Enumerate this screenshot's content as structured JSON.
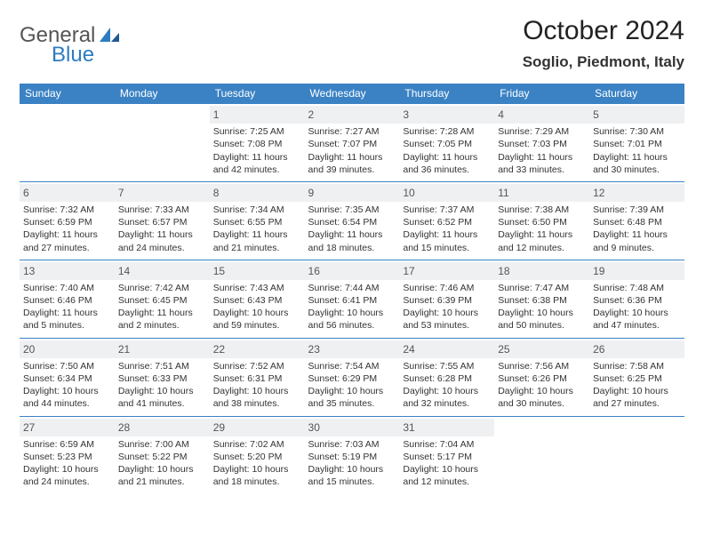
{
  "logo": {
    "textTop": "General",
    "textBottom": "Blue",
    "accent": "#2d7cc0"
  },
  "title": "October 2024",
  "location": "Soglio, Piedmont, Italy",
  "dayHeaders": [
    "Sunday",
    "Monday",
    "Tuesday",
    "Wednesday",
    "Thursday",
    "Friday",
    "Saturday"
  ],
  "theme": {
    "headerBg": "#3b82c4",
    "headerText": "#ffffff",
    "dayBg": "#eef0f2",
    "borderColor": "#3b82c4",
    "textColor": "#333333",
    "fontSizeBody": 10.5,
    "fontSizeDay": 12,
    "fontSizeTitle": 30,
    "fontSizeLocation": 17
  },
  "weeks": [
    [
      null,
      null,
      {
        "n": "1",
        "sunrise": "7:25 AM",
        "sunset": "7:08 PM",
        "daylight": "11 hours and 42 minutes."
      },
      {
        "n": "2",
        "sunrise": "7:27 AM",
        "sunset": "7:07 PM",
        "daylight": "11 hours and 39 minutes."
      },
      {
        "n": "3",
        "sunrise": "7:28 AM",
        "sunset": "7:05 PM",
        "daylight": "11 hours and 36 minutes."
      },
      {
        "n": "4",
        "sunrise": "7:29 AM",
        "sunset": "7:03 PM",
        "daylight": "11 hours and 33 minutes."
      },
      {
        "n": "5",
        "sunrise": "7:30 AM",
        "sunset": "7:01 PM",
        "daylight": "11 hours and 30 minutes."
      }
    ],
    [
      {
        "n": "6",
        "sunrise": "7:32 AM",
        "sunset": "6:59 PM",
        "daylight": "11 hours and 27 minutes."
      },
      {
        "n": "7",
        "sunrise": "7:33 AM",
        "sunset": "6:57 PM",
        "daylight": "11 hours and 24 minutes."
      },
      {
        "n": "8",
        "sunrise": "7:34 AM",
        "sunset": "6:55 PM",
        "daylight": "11 hours and 21 minutes."
      },
      {
        "n": "9",
        "sunrise": "7:35 AM",
        "sunset": "6:54 PM",
        "daylight": "11 hours and 18 minutes."
      },
      {
        "n": "10",
        "sunrise": "7:37 AM",
        "sunset": "6:52 PM",
        "daylight": "11 hours and 15 minutes."
      },
      {
        "n": "11",
        "sunrise": "7:38 AM",
        "sunset": "6:50 PM",
        "daylight": "11 hours and 12 minutes."
      },
      {
        "n": "12",
        "sunrise": "7:39 AM",
        "sunset": "6:48 PM",
        "daylight": "11 hours and 9 minutes."
      }
    ],
    [
      {
        "n": "13",
        "sunrise": "7:40 AM",
        "sunset": "6:46 PM",
        "daylight": "11 hours and 5 minutes."
      },
      {
        "n": "14",
        "sunrise": "7:42 AM",
        "sunset": "6:45 PM",
        "daylight": "11 hours and 2 minutes."
      },
      {
        "n": "15",
        "sunrise": "7:43 AM",
        "sunset": "6:43 PM",
        "daylight": "10 hours and 59 minutes."
      },
      {
        "n": "16",
        "sunrise": "7:44 AM",
        "sunset": "6:41 PM",
        "daylight": "10 hours and 56 minutes."
      },
      {
        "n": "17",
        "sunrise": "7:46 AM",
        "sunset": "6:39 PM",
        "daylight": "10 hours and 53 minutes."
      },
      {
        "n": "18",
        "sunrise": "7:47 AM",
        "sunset": "6:38 PM",
        "daylight": "10 hours and 50 minutes."
      },
      {
        "n": "19",
        "sunrise": "7:48 AM",
        "sunset": "6:36 PM",
        "daylight": "10 hours and 47 minutes."
      }
    ],
    [
      {
        "n": "20",
        "sunrise": "7:50 AM",
        "sunset": "6:34 PM",
        "daylight": "10 hours and 44 minutes."
      },
      {
        "n": "21",
        "sunrise": "7:51 AM",
        "sunset": "6:33 PM",
        "daylight": "10 hours and 41 minutes."
      },
      {
        "n": "22",
        "sunrise": "7:52 AM",
        "sunset": "6:31 PM",
        "daylight": "10 hours and 38 minutes."
      },
      {
        "n": "23",
        "sunrise": "7:54 AM",
        "sunset": "6:29 PM",
        "daylight": "10 hours and 35 minutes."
      },
      {
        "n": "24",
        "sunrise": "7:55 AM",
        "sunset": "6:28 PM",
        "daylight": "10 hours and 32 minutes."
      },
      {
        "n": "25",
        "sunrise": "7:56 AM",
        "sunset": "6:26 PM",
        "daylight": "10 hours and 30 minutes."
      },
      {
        "n": "26",
        "sunrise": "7:58 AM",
        "sunset": "6:25 PM",
        "daylight": "10 hours and 27 minutes."
      }
    ],
    [
      {
        "n": "27",
        "sunrise": "6:59 AM",
        "sunset": "5:23 PM",
        "daylight": "10 hours and 24 minutes."
      },
      {
        "n": "28",
        "sunrise": "7:00 AM",
        "sunset": "5:22 PM",
        "daylight": "10 hours and 21 minutes."
      },
      {
        "n": "29",
        "sunrise": "7:02 AM",
        "sunset": "5:20 PM",
        "daylight": "10 hours and 18 minutes."
      },
      {
        "n": "30",
        "sunrise": "7:03 AM",
        "sunset": "5:19 PM",
        "daylight": "10 hours and 15 minutes."
      },
      {
        "n": "31",
        "sunrise": "7:04 AM",
        "sunset": "5:17 PM",
        "daylight": "10 hours and 12 minutes."
      },
      null,
      null
    ]
  ]
}
